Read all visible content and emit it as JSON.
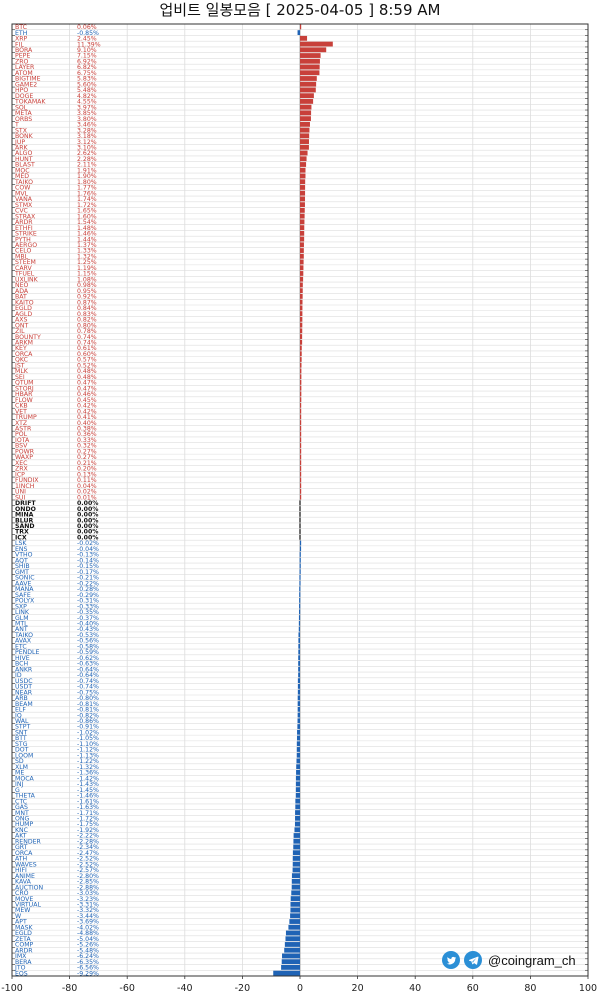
{
  "title": "업비트 일봉모음 [ 2025-04-05 ]  8:59 AM",
  "brand": {
    "handle": "@coingram_ch",
    "icons": [
      "twitter-icon",
      "telegram-icon"
    ]
  },
  "colors": {
    "up": "#c8403a",
    "down": "#1f63b5",
    "flat": "#111111",
    "grid": "#dddddd",
    "axis": "#333333"
  },
  "chart_data": {
    "type": "bar",
    "orientation": "horizontal",
    "title": "업비트 일봉모음 [ 2025-04-05 ]  8:59 AM",
    "xlim": [
      -100,
      100
    ],
    "xticks": [
      -100,
      -80,
      -60,
      -40,
      -20,
      0,
      20,
      40,
      60,
      80,
      100
    ],
    "xtick_labels": [
      "-100",
      "-80",
      "-60",
      "-40",
      "-20",
      "0",
      "20",
      "40",
      "60",
      "80",
      "100"
    ],
    "grid": true,
    "rows": [
      {
        "name": "BTC",
        "label": "0.06%",
        "change": 0.06
      },
      {
        "name": "ETH",
        "label": "-0.85%",
        "change": -0.85
      },
      {
        "name": "XRP",
        "label": "2.45%",
        "change": 2.45
      },
      {
        "name": "FIL",
        "label": "11.39%",
        "change": 11.39
      },
      {
        "name": "BORA",
        "label": "9.10%",
        "change": 9.1
      },
      {
        "name": "PEPE",
        "label": "7.15%",
        "change": 7.15
      },
      {
        "name": "ZRO",
        "label": "6.92%",
        "change": 6.92
      },
      {
        "name": "LAYER",
        "label": "6.82%",
        "change": 6.82
      },
      {
        "name": "ATOM",
        "label": "6.75%",
        "change": 6.75
      },
      {
        "name": "BIGTIME",
        "label": "5.83%",
        "change": 5.83
      },
      {
        "name": "GAME2",
        "label": "5.60%",
        "change": 5.6
      },
      {
        "name": "HPO",
        "label": "5.48%",
        "change": 5.48
      },
      {
        "name": "DOGE",
        "label": "4.82%",
        "change": 4.82
      },
      {
        "name": "TOKAMAK",
        "label": "4.55%",
        "change": 4.55
      },
      {
        "name": "SOL",
        "label": "3.97%",
        "change": 3.97
      },
      {
        "name": "META",
        "label": "3.85%",
        "change": 3.85
      },
      {
        "name": "ORBS",
        "label": "3.80%",
        "change": 3.8
      },
      {
        "name": "T",
        "label": "3.46%",
        "change": 3.46
      },
      {
        "name": "STX",
        "label": "3.28%",
        "change": 3.28
      },
      {
        "name": "BONK",
        "label": "3.18%",
        "change": 3.18
      },
      {
        "name": "JUP",
        "label": "3.12%",
        "change": 3.12
      },
      {
        "name": "ARK",
        "label": "3.10%",
        "change": 3.1
      },
      {
        "name": "ALGO",
        "label": "2.62%",
        "change": 2.62
      },
      {
        "name": "HUNT",
        "label": "2.28%",
        "change": 2.28
      },
      {
        "name": "BLAST",
        "label": "2.11%",
        "change": 2.11
      },
      {
        "name": "MOC",
        "label": "1.91%",
        "change": 1.91
      },
      {
        "name": "MED",
        "label": "1.90%",
        "change": 1.9
      },
      {
        "name": "TAIKO",
        "label": "1.80%",
        "change": 1.8
      },
      {
        "name": "COW",
        "label": "1.77%",
        "change": 1.77
      },
      {
        "name": "MVL",
        "label": "1.76%",
        "change": 1.76
      },
      {
        "name": "VANA",
        "label": "1.74%",
        "change": 1.74
      },
      {
        "name": "STMX",
        "label": "1.72%",
        "change": 1.72
      },
      {
        "name": "CVC",
        "label": "1.65%",
        "change": 1.65
      },
      {
        "name": "STRAX",
        "label": "1.60%",
        "change": 1.6
      },
      {
        "name": "ARDR",
        "label": "1.54%",
        "change": 1.54
      },
      {
        "name": "ETHFI",
        "label": "1.48%",
        "change": 1.48
      },
      {
        "name": "STRIKE",
        "label": "1.46%",
        "change": 1.46
      },
      {
        "name": "PYTH",
        "label": "1.44%",
        "change": 1.44
      },
      {
        "name": "AERGO",
        "label": "1.37%",
        "change": 1.37
      },
      {
        "name": "CELO",
        "label": "1.33%",
        "change": 1.33
      },
      {
        "name": "MBL",
        "label": "1.32%",
        "change": 1.32
      },
      {
        "name": "STEEM",
        "label": "1.25%",
        "change": 1.25
      },
      {
        "name": "CARV",
        "label": "1.19%",
        "change": 1.19
      },
      {
        "name": "TFUEL",
        "label": "1.15%",
        "change": 1.15
      },
      {
        "name": "UXLINK",
        "label": "1.08%",
        "change": 1.08
      },
      {
        "name": "NEO",
        "label": "0.98%",
        "change": 0.98
      },
      {
        "name": "ADA",
        "label": "0.95%",
        "change": 0.95
      },
      {
        "name": "BAT",
        "label": "0.92%",
        "change": 0.92
      },
      {
        "name": "KAITO",
        "label": "0.87%",
        "change": 0.87
      },
      {
        "name": "EGLD",
        "label": "0.84%",
        "change": 0.84
      },
      {
        "name": "AGLD",
        "label": "0.83%",
        "change": 0.83
      },
      {
        "name": "AXS",
        "label": "0.82%",
        "change": 0.82
      },
      {
        "name": "ONT",
        "label": "0.80%",
        "change": 0.8
      },
      {
        "name": "ZIL",
        "label": "0.78%",
        "change": 0.78
      },
      {
        "name": "BOUNTY",
        "label": "0.74%",
        "change": 0.74
      },
      {
        "name": "ARKM",
        "label": "0.74%",
        "change": 0.74
      },
      {
        "name": "KEY",
        "label": "0.61%",
        "change": 0.61
      },
      {
        "name": "ORCA",
        "label": "0.60%",
        "change": 0.6
      },
      {
        "name": "QKC",
        "label": "0.57%",
        "change": 0.57
      },
      {
        "name": "JST",
        "label": "0.52%",
        "change": 0.52
      },
      {
        "name": "MLK",
        "label": "0.48%",
        "change": 0.48
      },
      {
        "name": "SEI",
        "label": "0.48%",
        "change": 0.48
      },
      {
        "name": "QTUM",
        "label": "0.47%",
        "change": 0.47
      },
      {
        "name": "STORJ",
        "label": "0.47%",
        "change": 0.47
      },
      {
        "name": "HBAR",
        "label": "0.46%",
        "change": 0.46
      },
      {
        "name": "FLOW",
        "label": "0.45%",
        "change": 0.45
      },
      {
        "name": "CKB",
        "label": "0.42%",
        "change": 0.42
      },
      {
        "name": "VET",
        "label": "0.42%",
        "change": 0.42
      },
      {
        "name": "TRUMP",
        "label": "0.41%",
        "change": 0.41
      },
      {
        "name": "XTZ",
        "label": "0.40%",
        "change": 0.4
      },
      {
        "name": "ASTR",
        "label": "0.38%",
        "change": 0.38
      },
      {
        "name": "POL",
        "label": "0.36%",
        "change": 0.36
      },
      {
        "name": "IOTA",
        "label": "0.33%",
        "change": 0.33
      },
      {
        "name": "BSV",
        "label": "0.32%",
        "change": 0.32
      },
      {
        "name": "POWR",
        "label": "0.27%",
        "change": 0.27
      },
      {
        "name": "WAXP",
        "label": "0.27%",
        "change": 0.27
      },
      {
        "name": "XEC",
        "label": "0.21%",
        "change": 0.21
      },
      {
        "name": "ZRX",
        "label": "0.20%",
        "change": 0.2
      },
      {
        "name": "ICP",
        "label": "0.13%",
        "change": 0.13
      },
      {
        "name": "FUNDIX",
        "label": "0.11%",
        "change": 0.11
      },
      {
        "name": "1INCH",
        "label": "0.04%",
        "change": 0.04
      },
      {
        "name": "UNI",
        "label": "0.02%",
        "change": 0.02
      },
      {
        "name": "SUI",
        "label": "0.01%",
        "change": 0.01
      },
      {
        "name": "DRIFT",
        "label": "0.00%",
        "change": 0.0
      },
      {
        "name": "ONDO",
        "label": "0.00%",
        "change": 0.0
      },
      {
        "name": "MINA",
        "label": "0.00%",
        "change": 0.0
      },
      {
        "name": "BLUR",
        "label": "0.00%",
        "change": 0.0
      },
      {
        "name": "SAND",
        "label": "0.00%",
        "change": 0.0
      },
      {
        "name": "TRX",
        "label": "0.00%",
        "change": 0.0
      },
      {
        "name": "ICX",
        "label": "0.00%",
        "change": 0.0
      },
      {
        "name": "LSK",
        "label": "-0.02%",
        "change": -0.02
      },
      {
        "name": "ENS",
        "label": "-0.04%",
        "change": -0.04
      },
      {
        "name": "VTHO",
        "label": "-0.13%",
        "change": -0.13
      },
      {
        "name": "AQT",
        "label": "-0.14%",
        "change": -0.14
      },
      {
        "name": "SHIB",
        "label": "-0.15%",
        "change": -0.15
      },
      {
        "name": "GMT",
        "label": "-0.17%",
        "change": -0.17
      },
      {
        "name": "SONIC",
        "label": "-0.21%",
        "change": -0.21
      },
      {
        "name": "AAVE",
        "label": "-0.22%",
        "change": -0.22
      },
      {
        "name": "MANA",
        "label": "-0.28%",
        "change": -0.28
      },
      {
        "name": "SAFE",
        "label": "-0.29%",
        "change": -0.29
      },
      {
        "name": "POLYX",
        "label": "-0.31%",
        "change": -0.31
      },
      {
        "name": "SXP",
        "label": "-0.33%",
        "change": -0.33
      },
      {
        "name": "LINK",
        "label": "-0.35%",
        "change": -0.35
      },
      {
        "name": "GLM",
        "label": "-0.37%",
        "change": -0.37
      },
      {
        "name": "MTL",
        "label": "-0.40%",
        "change": -0.4
      },
      {
        "name": "ANT",
        "label": "-0.43%",
        "change": -0.43
      },
      {
        "name": "TAIKO",
        "label": "-0.53%",
        "change": -0.53
      },
      {
        "name": "AVAX",
        "label": "-0.56%",
        "change": -0.56
      },
      {
        "name": "ETC",
        "label": "-0.58%",
        "change": -0.58
      },
      {
        "name": "PENDLE",
        "label": "-0.59%",
        "change": -0.59
      },
      {
        "name": "HIVE",
        "label": "-0.62%",
        "change": -0.62
      },
      {
        "name": "BCH",
        "label": "-0.63%",
        "change": -0.63
      },
      {
        "name": "ANKR",
        "label": "-0.64%",
        "change": -0.64
      },
      {
        "name": "ID",
        "label": "-0.64%",
        "change": -0.64
      },
      {
        "name": "USDC",
        "label": "-0.74%",
        "change": -0.74
      },
      {
        "name": "USDT",
        "label": "-0.74%",
        "change": -0.74
      },
      {
        "name": "NEAR",
        "label": "-0.75%",
        "change": -0.75
      },
      {
        "name": "ARB",
        "label": "-0.80%",
        "change": -0.8
      },
      {
        "name": "BEAM",
        "label": "-0.81%",
        "change": -0.81
      },
      {
        "name": "ELF",
        "label": "-0.81%",
        "change": -0.81
      },
      {
        "name": "IQ",
        "label": "-0.82%",
        "change": -0.82
      },
      {
        "name": "WAL",
        "label": "-0.86%",
        "change": -0.86
      },
      {
        "name": "STPT",
        "label": "-0.91%",
        "change": -0.91
      },
      {
        "name": "SNT",
        "label": "-1.02%",
        "change": -1.02
      },
      {
        "name": "BTT",
        "label": "-1.05%",
        "change": -1.05
      },
      {
        "name": "STG",
        "label": "-1.10%",
        "change": -1.1
      },
      {
        "name": "DOT",
        "label": "-1.12%",
        "change": -1.12
      },
      {
        "name": "LOOM",
        "label": "-1.13%",
        "change": -1.13
      },
      {
        "name": "SD",
        "label": "-1.22%",
        "change": -1.22
      },
      {
        "name": "XLM",
        "label": "-1.32%",
        "change": -1.32
      },
      {
        "name": "ME",
        "label": "-1.36%",
        "change": -1.36
      },
      {
        "name": "MOCA",
        "label": "-1.42%",
        "change": -1.42
      },
      {
        "name": "INJ",
        "label": "-1.43%",
        "change": -1.43
      },
      {
        "name": "G",
        "label": "-1.45%",
        "change": -1.45
      },
      {
        "name": "THETA",
        "label": "-1.46%",
        "change": -1.46
      },
      {
        "name": "CTC",
        "label": "-1.61%",
        "change": -1.61
      },
      {
        "name": "GAS",
        "label": "-1.63%",
        "change": -1.63
      },
      {
        "name": "MNT",
        "label": "-1.71%",
        "change": -1.71
      },
      {
        "name": "ONG",
        "label": "-1.72%",
        "change": -1.72
      },
      {
        "name": "HUMP",
        "label": "-1.75%",
        "change": -1.75
      },
      {
        "name": "KNC",
        "label": "-1.92%",
        "change": -1.92
      },
      {
        "name": "AKT",
        "label": "-2.22%",
        "change": -2.22
      },
      {
        "name": "RENDER",
        "label": "-2.28%",
        "change": -2.28
      },
      {
        "name": "GRT",
        "label": "-2.34%",
        "change": -2.34
      },
      {
        "name": "ORCA",
        "label": "-2.47%",
        "change": -2.47
      },
      {
        "name": "ATH",
        "label": "-2.52%",
        "change": -2.52
      },
      {
        "name": "WAVES",
        "label": "-2.52%",
        "change": -2.52
      },
      {
        "name": "HIFI",
        "label": "-2.57%",
        "change": -2.57
      },
      {
        "name": "ANIME",
        "label": "-2.80%",
        "change": -2.8
      },
      {
        "name": "KAVA",
        "label": "-2.85%",
        "change": -2.85
      },
      {
        "name": "AUCTION",
        "label": "-2.88%",
        "change": -2.88
      },
      {
        "name": "CRO",
        "label": "-3.03%",
        "change": -3.03
      },
      {
        "name": "MOVE",
        "label": "-3.23%",
        "change": -3.23
      },
      {
        "name": "VIRTUAL",
        "label": "-3.31%",
        "change": -3.31
      },
      {
        "name": "MEW",
        "label": "-3.32%",
        "change": -3.32
      },
      {
        "name": "W",
        "label": "-3.44%",
        "change": -3.44
      },
      {
        "name": "APT",
        "label": "-3.69%",
        "change": -3.69
      },
      {
        "name": "MASK",
        "label": "-4.02%",
        "change": -4.02
      },
      {
        "name": "EGLD",
        "label": "-4.88%",
        "change": -4.88
      },
      {
        "name": "ZETA",
        "label": "-5.04%",
        "change": -5.04
      },
      {
        "name": "COMP",
        "label": "-5.26%",
        "change": -5.26
      },
      {
        "name": "ARDR",
        "label": "-5.48%",
        "change": -5.48
      },
      {
        "name": "IMX",
        "label": "-6.24%",
        "change": -6.24
      },
      {
        "name": "BERA",
        "label": "-6.35%",
        "change": -6.35
      },
      {
        "name": "JTO",
        "label": "-6.56%",
        "change": -6.56
      },
      {
        "name": "EOS",
        "label": "-9.29%",
        "change": -9.29
      }
    ]
  }
}
